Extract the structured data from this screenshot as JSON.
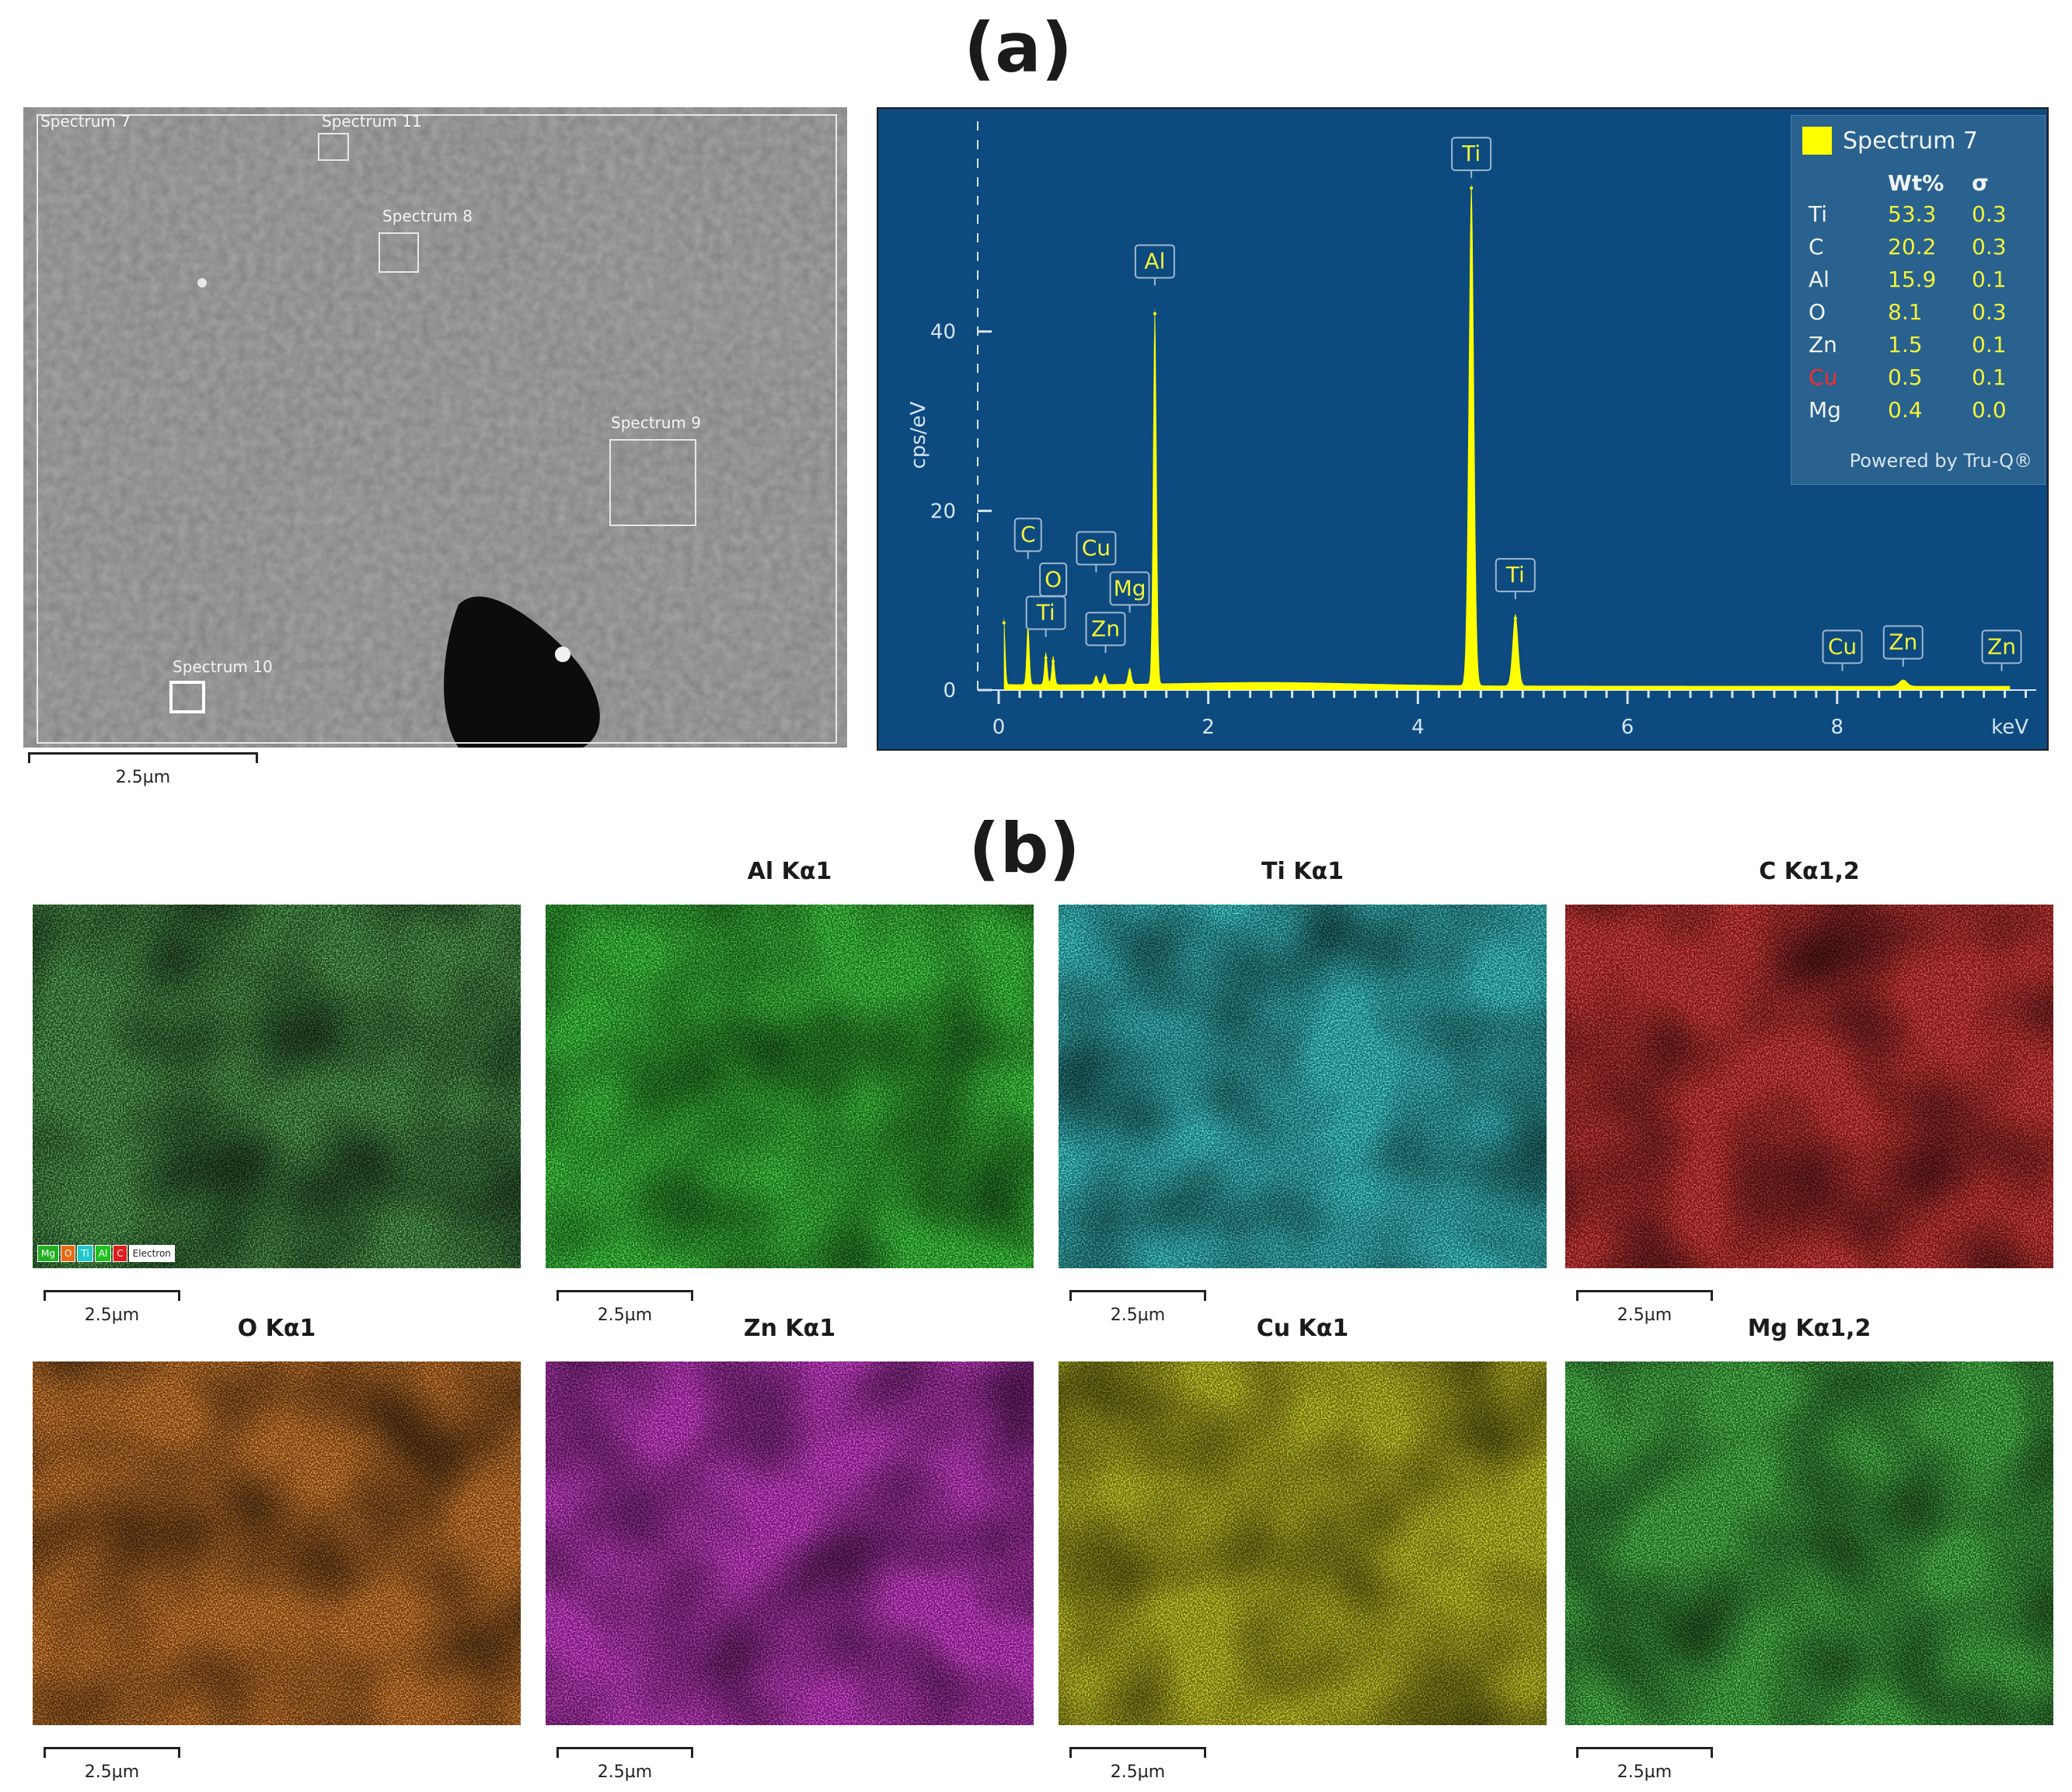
{
  "figure": {
    "panel_a_label": "(a)",
    "panel_b_label": "(b)",
    "scale_label": "2.5µm",
    "sem": {
      "boxes": [
        {
          "label": "Spectrum 7"
        },
        {
          "label": "Spectrum 11"
        },
        {
          "label": "Spectrum 8"
        },
        {
          "label": "Spectrum 9"
        },
        {
          "label": "Spectrum 10"
        }
      ]
    },
    "maps": [
      {
        "title": "",
        "color": "#2f8f2f"
      },
      {
        "title": "Al Kα1",
        "color": "#22e022"
      },
      {
        "title": "Ti Kα1",
        "color": "#22e3e6"
      },
      {
        "title": "C Kα1,2",
        "color": "#ee1c1c"
      },
      {
        "title": "O Kα1",
        "color": "#e86a14"
      },
      {
        "title": "Zn Kα1",
        "color": "#e322e3"
      },
      {
        "title": "Cu Kα1",
        "color": "#d6d60e"
      },
      {
        "title": "Mg Kα1,2",
        "color": "#2cc22c"
      }
    ],
    "legend_strip": [
      {
        "label": "Mg",
        "color": "#22b022"
      },
      {
        "label": "O",
        "color": "#e86a14"
      },
      {
        "label": "Ti",
        "color": "#22c7ca"
      },
      {
        "label": "Al",
        "color": "#22c022"
      },
      {
        "label": "C",
        "color": "#e21c1c"
      },
      {
        "label": "Electron",
        "color": "#ffffff"
      }
    ]
  },
  "chart_data": {
    "type": "line",
    "xlabel": "keV",
    "ylabel": "cps/eV",
    "xlim": [
      -0.2,
      9.9
    ],
    "ylim": [
      0,
      60
    ],
    "x_ticks": [
      0,
      2,
      4,
      6,
      8
    ],
    "y_ticks": [
      0,
      20,
      40
    ],
    "series_color": "#ffff00",
    "peaks": [
      {
        "x": 0.05,
        "y": 7.5
      },
      {
        "x": 0.28,
        "y": 7.0
      },
      {
        "x": 0.45,
        "y": 3.6
      },
      {
        "x": 0.52,
        "y": 3.2
      },
      {
        "x": 0.93,
        "y": 1.0
      },
      {
        "x": 1.01,
        "y": 1.2
      },
      {
        "x": 1.25,
        "y": 1.8
      },
      {
        "x": 1.49,
        "y": 42.0
      },
      {
        "x": 4.51,
        "y": 56.0
      },
      {
        "x": 4.93,
        "y": 8.0
      },
      {
        "x": 8.63,
        "y": 0.7
      }
    ],
    "peak_labels": [
      {
        "label": "C",
        "x": 0.28,
        "y": 15.5
      },
      {
        "label": "O",
        "x": 0.52,
        "y": 10.5
      },
      {
        "label": "Ti",
        "x": 0.45,
        "y": 6.8
      },
      {
        "label": "Cu",
        "x": 0.93,
        "y": 14.0
      },
      {
        "label": "Zn",
        "x": 1.02,
        "y": 5.0
      },
      {
        "label": "Mg",
        "x": 1.25,
        "y": 9.5
      },
      {
        "label": "Al",
        "x": 1.49,
        "y": 46.0
      },
      {
        "label": "Ti",
        "x": 4.51,
        "y": 58.0
      },
      {
        "label": "Ti",
        "x": 4.93,
        "y": 11.0
      },
      {
        "label": "Cu",
        "x": 8.05,
        "y": 3.0
      },
      {
        "label": "Zn",
        "x": 8.63,
        "y": 3.5
      },
      {
        "label": "Zn",
        "x": 9.57,
        "y": 3.0
      }
    ],
    "table": {
      "title": "Spectrum 7",
      "col_wt": "Wt%",
      "col_sigma": "σ",
      "rows": [
        {
          "el": "Ti",
          "wt": "53.3",
          "sigma": "0.3"
        },
        {
          "el": "C",
          "wt": "20.2",
          "sigma": "0.3"
        },
        {
          "el": "Al",
          "wt": "15.9",
          "sigma": "0.1"
        },
        {
          "el": "O",
          "wt": "8.1",
          "sigma": "0.3"
        },
        {
          "el": "Zn",
          "wt": "1.5",
          "sigma": "0.1"
        },
        {
          "el": "Cu",
          "wt": "0.5",
          "sigma": "0.1",
          "el_color": "#ff2a2a"
        },
        {
          "el": "Mg",
          "wt": "0.4",
          "sigma": "0.0"
        }
      ],
      "footer": "Powered by Tru-Q®"
    }
  }
}
